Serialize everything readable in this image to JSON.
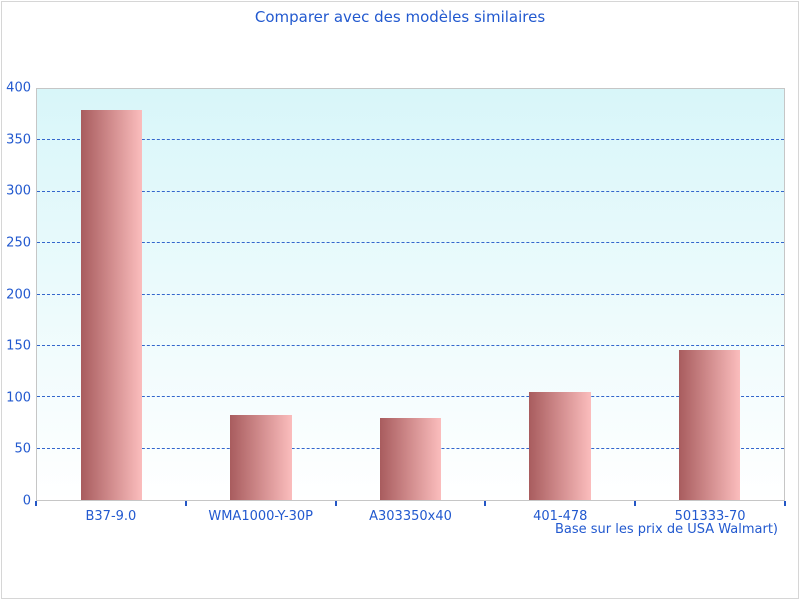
{
  "title": "Comparer avec des modèles similaires",
  "footer": "Base sur les prix de USA Walmart)",
  "colors": {
    "text_blue": "#2259cf",
    "grid_blue": "#3366cc",
    "tick_blue": "#2457c5",
    "plot_bg_top": "#d8f6f9",
    "plot_bg_bottom": "#ffffff",
    "plot_border": "#c6c6c6",
    "bar_gradient_left": "#a85c5e",
    "bar_gradient_right": "#fbbdbd"
  },
  "chart_data": {
    "type": "bar",
    "title": "Comparer avec des modèles similaires",
    "categories": [
      "B37-9.0",
      "WMA1000-Y-30P",
      "A303350x40",
      "401-478",
      "501333-70"
    ],
    "values": [
      380,
      83,
      80,
      105,
      146
    ],
    "xlabel": "",
    "ylabel": "",
    "ylim": [
      0,
      400
    ],
    "ytick_interval": 50,
    "grid": "horizontal-dashed",
    "legend": "none",
    "annotation": "Base sur les prix de USA Walmart)"
  }
}
